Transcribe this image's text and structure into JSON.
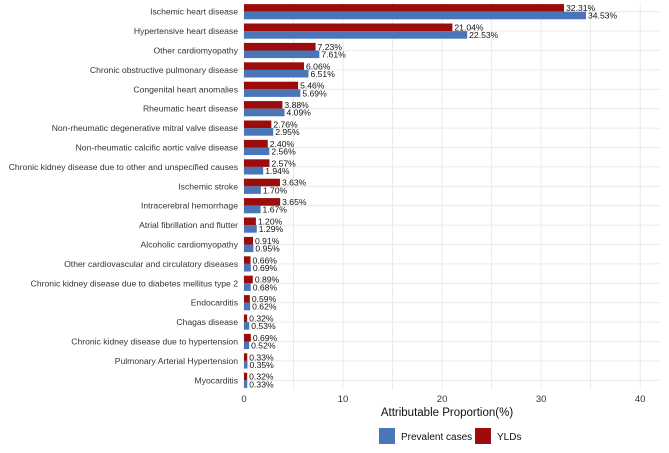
{
  "chart_data": {
    "type": "bar",
    "orientation": "horizontal",
    "title": "",
    "xlabel": "Attributable Proportion(%)",
    "ylabel": "",
    "xlim": [
      0,
      42
    ],
    "x_ticks": [
      "0",
      "10",
      "20",
      "30",
      "40"
    ],
    "x_tick_values": [
      0,
      10,
      20,
      30,
      40
    ],
    "categories": [
      "Ischemic heart disease",
      "Hypertensive heart disease",
      "Other cardiomyopathy",
      "Chronic obstructive pulmonary disease",
      "Congenital heart anomalies",
      "Rheumatic heart disease",
      "Non-rheumatic degenerative mitral valve disease",
      "Non-rheumatic calcific aortic valve disease",
      "Chronic kidney disease due to other and unspecified causes",
      "Ischemic stroke",
      "Intracerebral hemorrhage",
      "Atrial fibrillation and flutter",
      "Alcoholic cardiomyopathy",
      "Other cardiovascular and circulatory diseases",
      "Chronic kidney disease due to diabetes mellitus type 2",
      "Endocarditis",
      "Chagas disease",
      "Chronic kidney disease due to hypertension",
      "Pulmonary Arterial Hypertension",
      "Myocarditis"
    ],
    "series": [
      {
        "name": "YLDs",
        "color": "#9b0d0d",
        "values": [
          32.31,
          21.04,
          7.23,
          6.06,
          5.46,
          3.88,
          2.76,
          2.4,
          2.57,
          3.63,
          3.65,
          1.2,
          0.91,
          0.66,
          0.89,
          0.59,
          0.32,
          0.69,
          0.33,
          0.32
        ],
        "labels": [
          "32.31%",
          "21.04%",
          "7.23%",
          "6.06%",
          "5.46%",
          "3.88%",
          "2.76%",
          "2.40%",
          "2.57%",
          "3.63%",
          "3.65%",
          "1.20%",
          "0.91%",
          "0.66%",
          "0.89%",
          "0.59%",
          "0.32%",
          "0.69%",
          "0.33%",
          "0.32%"
        ]
      },
      {
        "name": "Prevalent cases",
        "color": "#4a76b8",
        "values": [
          34.53,
          22.53,
          7.61,
          6.51,
          5.69,
          4.09,
          2.95,
          2.56,
          1.94,
          1.7,
          1.67,
          1.29,
          0.95,
          0.69,
          0.68,
          0.62,
          0.53,
          0.52,
          0.35,
          0.33
        ],
        "labels": [
          "34.53%",
          "22.53%",
          "7.61%",
          "6.51%",
          "5.69%",
          "4.09%",
          "2.95%",
          "2.56%",
          "1.94%",
          "1.70%",
          "1.67%",
          "1.29%",
          "0.95%",
          "0.69%",
          "0.68%",
          "0.62%",
          "0.53%",
          "0.52%",
          "0.35%",
          "0.33%"
        ]
      }
    ],
    "legend": {
      "position": "bottom-center",
      "items": [
        {
          "name": "Prevalent cases",
          "color": "#4a76b8"
        },
        {
          "name": "YLDs",
          "color": "#9b0d0d"
        }
      ]
    },
    "grid": true
  }
}
